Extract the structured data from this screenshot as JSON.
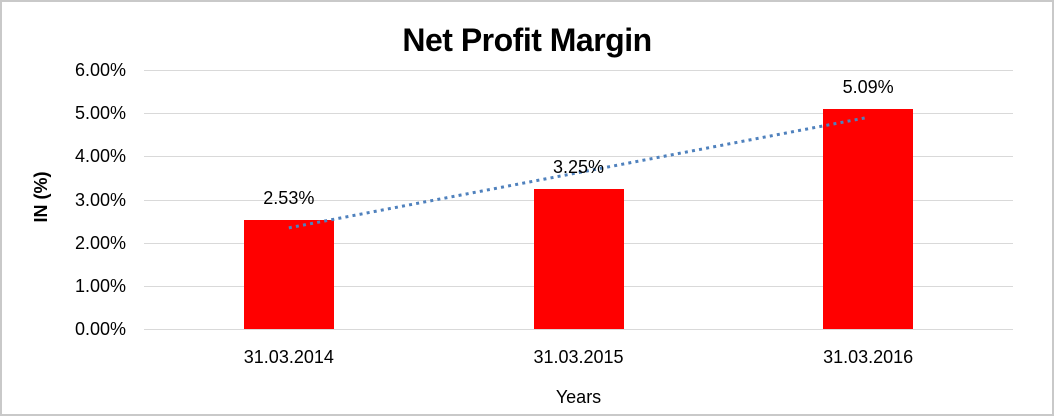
{
  "window": {
    "background_color": "#FFFFFF",
    "border_color": "#C9C9C9"
  },
  "chart_data": {
    "type": "bar",
    "title": "Net Profit Margin",
    "xlabel": "Years",
    "ylabel": "IN (%)",
    "categories": [
      "31.03.2014",
      "31.03.2015",
      "31.03.2016"
    ],
    "values": [
      2.53,
      3.25,
      5.09
    ],
    "data_labels": [
      "2.53%",
      "3.25%",
      "5.09%"
    ],
    "ylim": [
      0,
      6
    ],
    "yticks": [
      0,
      1,
      2,
      3,
      4,
      5,
      6
    ],
    "ytick_labels": [
      "0.00%",
      "1.00%",
      "2.00%",
      "3.00%",
      "4.00%",
      "5.00%",
      "6.00%"
    ],
    "grid": true,
    "legend_position": "none",
    "bar_color": "#FF0000",
    "gridline_color": "#D9D9D9",
    "text_color": "#000000",
    "trendline": {
      "type": "linear",
      "style": "dotted",
      "color": "#4F81BD"
    }
  }
}
